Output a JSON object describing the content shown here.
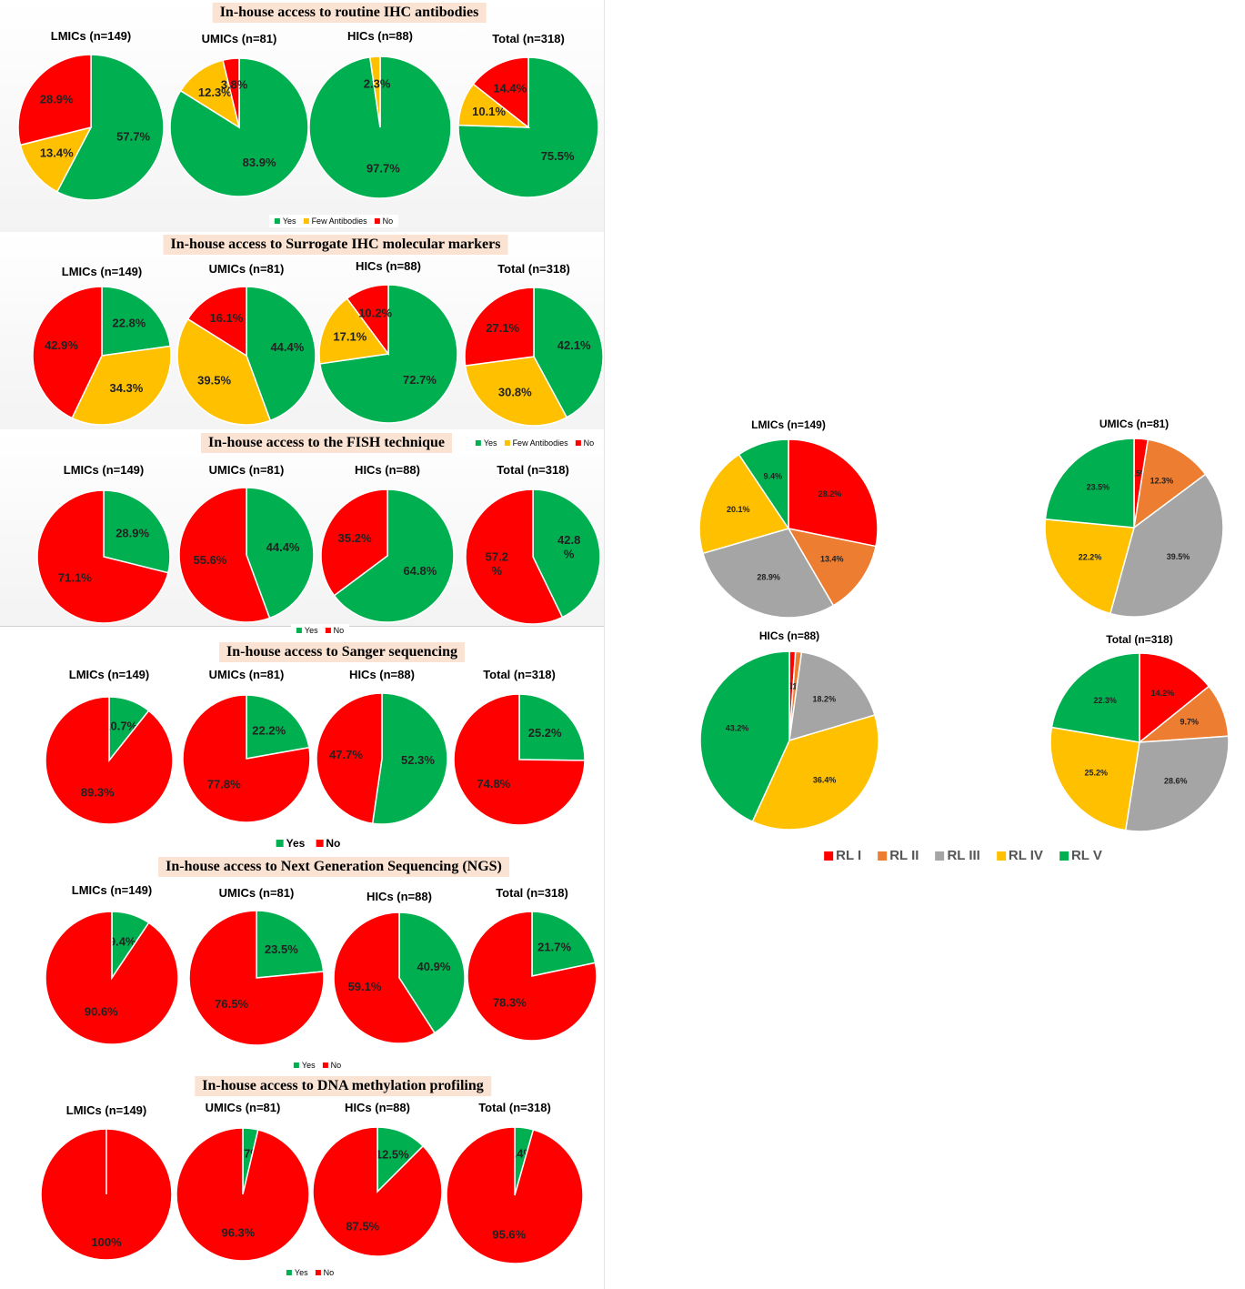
{
  "colors": {
    "yes": "#00b050",
    "few": "#ffc000",
    "no": "#ff0000",
    "rl1": "#ff0000",
    "rl2": "#ed7d31",
    "rl3": "#a5a5a5",
    "rl4": "#ffc000",
    "rl5": "#00b050"
  },
  "legends": {
    "yes": "Yes",
    "few": "Few Antibodies",
    "no": "No",
    "rl1": "RL I",
    "rl2": "RL II",
    "rl3": "RL III",
    "rl4": "RL IV",
    "rl5": "RL V"
  },
  "chart_data": [
    {
      "type": "pie",
      "title": "In-house access to routine IHC antibodies",
      "legend": [
        "Yes",
        "Few Antibodies",
        "No"
      ],
      "pies": [
        {
          "label": "LMICs (n=149)",
          "slices": [
            {
              "name": "Yes",
              "value": 57.7,
              "text": "57.7%"
            },
            {
              "name": "Few Antibodies",
              "value": 13.4,
              "text": "13.4%"
            },
            {
              "name": "No",
              "value": 28.9,
              "text": "28.9%"
            }
          ]
        },
        {
          "label": "UMICs (n=81)",
          "slices": [
            {
              "name": "Yes",
              "value": 83.9,
              "text": "83.9%"
            },
            {
              "name": "Few Antibodies",
              "value": 12.3,
              "text": "12.3%"
            },
            {
              "name": "No",
              "value": 3.8,
              "text": "3.8%"
            }
          ]
        },
        {
          "label": "HICs (n=88)",
          "slices": [
            {
              "name": "Yes",
              "value": 97.7,
              "text": "97.7%"
            },
            {
              "name": "Few Antibodies",
              "value": 2.3,
              "text": "2.3%"
            }
          ]
        },
        {
          "label": "Total (n=318)",
          "slices": [
            {
              "name": "Yes",
              "value": 75.5,
              "text": "75.5%"
            },
            {
              "name": "Few Antibodies",
              "value": 10.1,
              "text": "10.1%"
            },
            {
              "name": "No",
              "value": 14.4,
              "text": "14.4%"
            }
          ]
        }
      ]
    },
    {
      "type": "pie",
      "title": "In-house access to Surrogate IHC molecular markers",
      "legend": [
        "Yes",
        "Few Antibodies",
        "No"
      ],
      "pies": [
        {
          "label": "LMICs (n=149)",
          "slices": [
            {
              "name": "Yes",
              "value": 22.8,
              "text": "22.8%"
            },
            {
              "name": "Few Antibodies",
              "value": 34.3,
              "text": "34.3%"
            },
            {
              "name": "No",
              "value": 42.9,
              "text": "42.9%"
            }
          ]
        },
        {
          "label": "UMICs (n=81)",
          "slices": [
            {
              "name": "Yes",
              "value": 44.4,
              "text": "44.4%"
            },
            {
              "name": "Few Antibodies",
              "value": 39.5,
              "text": "39.5%"
            },
            {
              "name": "No",
              "value": 16.1,
              "text": "16.1%"
            }
          ]
        },
        {
          "label": "HICs (n=88)",
          "slices": [
            {
              "name": "Yes",
              "value": 72.7,
              "text": "72.7%"
            },
            {
              "name": "Few Antibodies",
              "value": 17.1,
              "text": "17.1%"
            },
            {
              "name": "No",
              "value": 10.2,
              "text": "10.2%"
            }
          ]
        },
        {
          "label": "Total (n=318)",
          "slices": [
            {
              "name": "Yes",
              "value": 42.1,
              "text": "42.1%"
            },
            {
              "name": "Few Antibodies",
              "value": 30.8,
              "text": "30.8%"
            },
            {
              "name": "No",
              "value": 27.1,
              "text": "27.1%"
            }
          ]
        }
      ]
    },
    {
      "type": "pie",
      "title": "In-house access to the FISH technique",
      "legend": [
        "Yes",
        "No"
      ],
      "pies": [
        {
          "label": "LMICs (n=149)",
          "slices": [
            {
              "name": "Yes",
              "value": 28.9,
              "text": "28.9%"
            },
            {
              "name": "No",
              "value": 71.1,
              "text": "71.1%"
            }
          ]
        },
        {
          "label": "UMICs (n=81)",
          "slices": [
            {
              "name": "Yes",
              "value": 44.4,
              "text": "44.4%"
            },
            {
              "name": "No",
              "value": 55.6,
              "text": "55.6%"
            }
          ]
        },
        {
          "label": "HICs (n=88)",
          "slices": [
            {
              "name": "Yes",
              "value": 64.8,
              "text": "64.8%"
            },
            {
              "name": "No",
              "value": 35.2,
              "text": "35.2%"
            }
          ]
        },
        {
          "label": "Total (n=318)",
          "slices": [
            {
              "name": "Yes",
              "value": 42.8,
              "text": "42.8\n%"
            },
            {
              "name": "No",
              "value": 57.2,
              "text": "57.2\n%"
            }
          ]
        }
      ]
    },
    {
      "type": "pie",
      "title": "In-house access to Sanger sequencing",
      "legend": [
        "Yes",
        "No"
      ],
      "pies": [
        {
          "label": "LMICs (n=149)",
          "slices": [
            {
              "name": "Yes",
              "value": 10.7,
              "text": "10.7%"
            },
            {
              "name": "No",
              "value": 89.3,
              "text": "89.3%"
            }
          ]
        },
        {
          "label": "UMICs (n=81)",
          "slices": [
            {
              "name": "Yes",
              "value": 22.2,
              "text": "22.2%"
            },
            {
              "name": "No",
              "value": 77.8,
              "text": "77.8%"
            }
          ]
        },
        {
          "label": "HICs (n=88)",
          "slices": [
            {
              "name": "Yes",
              "value": 52.3,
              "text": "52.3%"
            },
            {
              "name": "No",
              "value": 47.7,
              "text": "47.7%"
            }
          ]
        },
        {
          "label": "Total (n=318)",
          "slices": [
            {
              "name": "Yes",
              "value": 25.2,
              "text": "25.2%"
            },
            {
              "name": "No",
              "value": 74.8,
              "text": "74.8%"
            }
          ]
        }
      ]
    },
    {
      "type": "pie",
      "title": "In-house access to Next Generation Sequencing (NGS)",
      "legend": [
        "Yes",
        "No"
      ],
      "pies": [
        {
          "label": "LMICs (n=149)",
          "slices": [
            {
              "name": "Yes",
              "value": 9.4,
              "text": "9.4%"
            },
            {
              "name": "No",
              "value": 90.6,
              "text": "90.6%"
            }
          ]
        },
        {
          "label": "UMICs (n=81)",
          "slices": [
            {
              "name": "Yes",
              "value": 23.5,
              "text": "23.5%"
            },
            {
              "name": "No",
              "value": 76.5,
              "text": "76.5%"
            }
          ]
        },
        {
          "label": "HICs (n=88)",
          "slices": [
            {
              "name": "Yes",
              "value": 40.9,
              "text": "40.9%"
            },
            {
              "name": "No",
              "value": 59.1,
              "text": "59.1%"
            }
          ]
        },
        {
          "label": "Total (n=318)",
          "slices": [
            {
              "name": "Yes",
              "value": 21.7,
              "text": "21.7%"
            },
            {
              "name": "No",
              "value": 78.3,
              "text": "78.3%"
            }
          ]
        }
      ]
    },
    {
      "type": "pie",
      "title": "In-house access to DNA methylation profiling",
      "legend": [
        "Yes",
        "No"
      ],
      "pies": [
        {
          "label": "LMICs (n=149)",
          "slices": [
            {
              "name": "No",
              "value": 100,
              "text": "100%"
            }
          ]
        },
        {
          "label": "UMICs (n=81)",
          "slices": [
            {
              "name": "Yes",
              "value": 3.7,
              "text": "3.7%"
            },
            {
              "name": "No",
              "value": 96.3,
              "text": "96.3%"
            }
          ]
        },
        {
          "label": "HICs (n=88)",
          "slices": [
            {
              "name": "Yes",
              "value": 12.5,
              "text": "12.5%"
            },
            {
              "name": "No",
              "value": 87.5,
              "text": "87.5%"
            }
          ]
        },
        {
          "label": "Total (n=318)",
          "slices": [
            {
              "name": "Yes",
              "value": 4.4,
              "text": "4.4%"
            },
            {
              "name": "No",
              "value": 95.6,
              "text": "95.6%"
            }
          ]
        }
      ]
    },
    {
      "type": "pie",
      "title": "",
      "legend": [
        "RL I",
        "RL II",
        "RL III",
        "RL IV",
        "RL V"
      ],
      "pies": [
        {
          "label": "LMICs (n=149)",
          "slices": [
            {
              "name": "RL I",
              "value": 28.2,
              "text": "28.2%"
            },
            {
              "name": "RL II",
              "value": 13.4,
              "text": "13.4%"
            },
            {
              "name": "RL III",
              "value": 28.9,
              "text": "28.9%"
            },
            {
              "name": "RL IV",
              "value": 20.1,
              "text": "20.1%"
            },
            {
              "name": "RL V",
              "value": 9.4,
              "text": "9.4%"
            }
          ]
        },
        {
          "label": "UMICs (n=81)",
          "slices": [
            {
              "name": "RL I",
              "value": 2.5,
              "text": "2.5%"
            },
            {
              "name": "RL II",
              "value": 12.3,
              "text": "12.3%"
            },
            {
              "name": "RL III",
              "value": 39.5,
              "text": "39.5%"
            },
            {
              "name": "RL IV",
              "value": 22.2,
              "text": "22.2%"
            },
            {
              "name": "RL V",
              "value": 23.5,
              "text": "23.5%"
            }
          ]
        },
        {
          "label": "HICs (n=88)",
          "slices": [
            {
              "name": "RL I",
              "value": 1.1,
              "text": "1.1%"
            },
            {
              "name": "RL II",
              "value": 1.1,
              "text": "1.1%"
            },
            {
              "name": "RL III",
              "value": 18.2,
              "text": "18.2%"
            },
            {
              "name": "RL IV",
              "value": 36.4,
              "text": "36.4%"
            },
            {
              "name": "RL V",
              "value": 43.2,
              "text": "43.2%"
            }
          ]
        },
        {
          "label": "Total (n=318)",
          "slices": [
            {
              "name": "RL I",
              "value": 14.2,
              "text": "14.2%"
            },
            {
              "name": "RL II",
              "value": 9.7,
              "text": "9.7%"
            },
            {
              "name": "RL III",
              "value": 28.6,
              "text": "28.6%"
            },
            {
              "name": "RL IV",
              "value": 25.2,
              "text": "25.2%"
            },
            {
              "name": "RL V",
              "value": 22.3,
              "text": "22.3%"
            }
          ]
        }
      ]
    }
  ]
}
